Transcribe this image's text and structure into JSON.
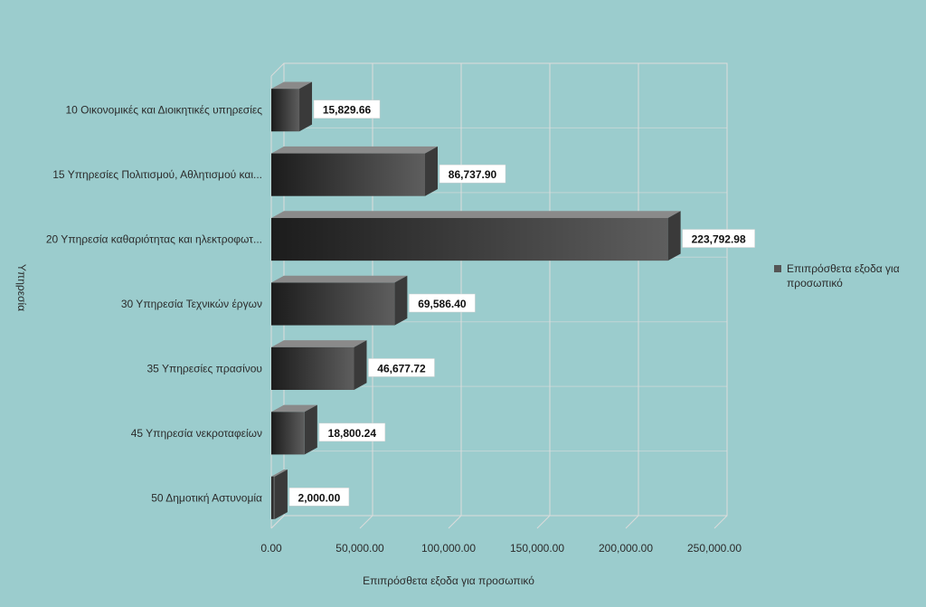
{
  "chart_data": {
    "type": "bar",
    "orientation": "horizontal",
    "categories": [
      "10 Οικονομικές και Διοικητικές υπηρεσίες",
      "15 Υπηρεσίες Πολιτισμού, Αθλητισμού και...",
      "20 Υπηρεσία καθαριότητας και ηλεκτροφωτ...",
      "30 Υπηρεσία Τεχνικών έργων",
      "35 Υπηρεσίες πρασίνου",
      "45 Υπηρεσία νεκροταφείων",
      "50 Δημοτική Αστυνομία"
    ],
    "series": [
      {
        "name": "Επιπρόσθετα εξοδα για προσωπικό",
        "values": [
          15829.66,
          86737.9,
          223792.98,
          69586.4,
          46677.72,
          18800.24,
          2000.0
        ],
        "data_labels": [
          "15,829.66",
          "86,737.90",
          "223,792.98",
          "69,586.40",
          "46,677.72",
          "18,800.24",
          "2,000.00"
        ]
      }
    ],
    "xlabel": "Επιπρόσθετα εξοδα για προσωπικό",
    "ylabel": "Υπηρεσία",
    "xlim": [
      0,
      250000
    ],
    "x_ticks": [
      0,
      50000,
      100000,
      150000,
      200000,
      250000
    ],
    "x_tick_labels": [
      "0.00",
      "50,000.00",
      "100,000.00",
      "150,000.00",
      "200,000.00",
      "250,000.00"
    ],
    "grid": true,
    "legend_position": "right",
    "colors": {
      "background": "#9bcccd",
      "bar_front_dark": "#1c1c1c",
      "bar_front_light": "#5e5e5e",
      "bar_top": "#8a8a8a",
      "bar_side": "#3a3a3a",
      "grid": "#dcdcdc",
      "legend_swatch": "#555555"
    }
  }
}
